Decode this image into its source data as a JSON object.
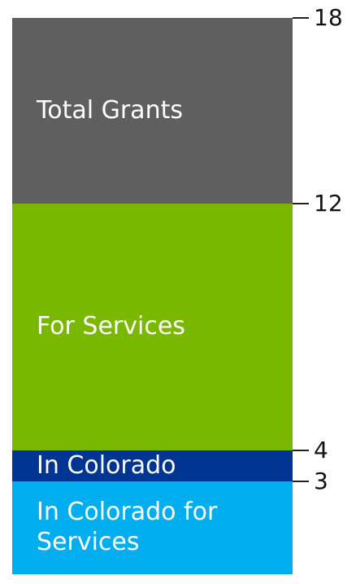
{
  "chart_data": {
    "type": "bar",
    "stacked": true,
    "categories": [
      null
    ],
    "series": [
      {
        "name": "In Colorado for Services",
        "color": "#00aeef",
        "values": [
          3
        ]
      },
      {
        "name": "In Colorado",
        "color": "#003594",
        "values": [
          1
        ]
      },
      {
        "name": "For Services",
        "color": "#7ab800",
        "values": [
          8
        ]
      },
      {
        "name": "Total Grants",
        "color": "#5f5f5f",
        "values": [
          6
        ]
      }
    ],
    "ylim": [
      0,
      18
    ],
    "yticks": [
      3,
      4,
      12,
      18
    ]
  }
}
